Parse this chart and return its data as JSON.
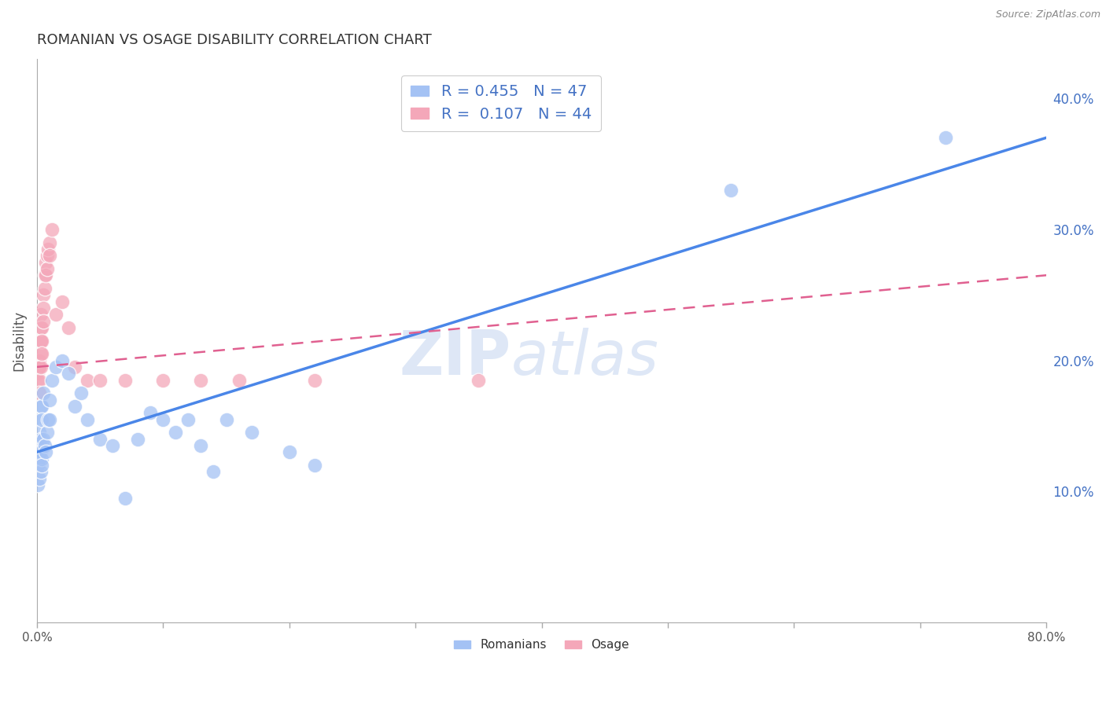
{
  "title": "ROMANIAN VS OSAGE DISABILITY CORRELATION CHART",
  "source": "Source: ZipAtlas.com",
  "ylabel": "Disability",
  "xlim": [
    0.0,
    0.8
  ],
  "ylim": [
    0.0,
    0.43
  ],
  "xticks": [
    0.0,
    0.1,
    0.2,
    0.3,
    0.4,
    0.5,
    0.6,
    0.7,
    0.8
  ],
  "xtick_labels_sparse": [
    "0.0%",
    "",
    "",
    "",
    "",
    "",
    "",
    "",
    "80.0%"
  ],
  "yticks_right": [
    0.1,
    0.2,
    0.3,
    0.4
  ],
  "ytick_labels_right": [
    "10.0%",
    "20.0%",
    "30.0%",
    "40.0%"
  ],
  "blue_color": "#a4c2f4",
  "pink_color": "#f4a7b9",
  "blue_line_color": "#4a86e8",
  "pink_line_color": "#e06090",
  "R_blue": 0.455,
  "N_blue": 47,
  "R_pink": 0.107,
  "N_pink": 44,
  "legend_label_blue": "Romanians",
  "legend_label_pink": "Osage",
  "watermark_zip": "ZIP",
  "watermark_atlas": "atlas",
  "background_color": "#ffffff",
  "grid_color": "#cccccc",
  "blue_scatter": [
    [
      0.001,
      0.155
    ],
    [
      0.001,
      0.135
    ],
    [
      0.001,
      0.12
    ],
    [
      0.001,
      0.105
    ],
    [
      0.002,
      0.13
    ],
    [
      0.002,
      0.11
    ],
    [
      0.002,
      0.145
    ],
    [
      0.002,
      0.125
    ],
    [
      0.003,
      0.165
    ],
    [
      0.003,
      0.14
    ],
    [
      0.003,
      0.13
    ],
    [
      0.003,
      0.115
    ],
    [
      0.004,
      0.125
    ],
    [
      0.004,
      0.12
    ],
    [
      0.004,
      0.165
    ],
    [
      0.004,
      0.155
    ],
    [
      0.005,
      0.175
    ],
    [
      0.005,
      0.14
    ],
    [
      0.006,
      0.135
    ],
    [
      0.007,
      0.13
    ],
    [
      0.008,
      0.145
    ],
    [
      0.009,
      0.155
    ],
    [
      0.01,
      0.17
    ],
    [
      0.01,
      0.155
    ],
    [
      0.012,
      0.185
    ],
    [
      0.015,
      0.195
    ],
    [
      0.02,
      0.2
    ],
    [
      0.025,
      0.19
    ],
    [
      0.03,
      0.165
    ],
    [
      0.035,
      0.175
    ],
    [
      0.04,
      0.155
    ],
    [
      0.05,
      0.14
    ],
    [
      0.06,
      0.135
    ],
    [
      0.07,
      0.095
    ],
    [
      0.08,
      0.14
    ],
    [
      0.09,
      0.16
    ],
    [
      0.1,
      0.155
    ],
    [
      0.11,
      0.145
    ],
    [
      0.12,
      0.155
    ],
    [
      0.13,
      0.135
    ],
    [
      0.14,
      0.115
    ],
    [
      0.15,
      0.155
    ],
    [
      0.17,
      0.145
    ],
    [
      0.2,
      0.13
    ],
    [
      0.22,
      0.12
    ],
    [
      0.55,
      0.33
    ],
    [
      0.72,
      0.37
    ]
  ],
  "pink_scatter": [
    [
      0.001,
      0.195
    ],
    [
      0.001,
      0.195
    ],
    [
      0.001,
      0.19
    ],
    [
      0.001,
      0.185
    ],
    [
      0.002,
      0.2
    ],
    [
      0.002,
      0.195
    ],
    [
      0.002,
      0.2
    ],
    [
      0.002,
      0.195
    ],
    [
      0.002,
      0.185
    ],
    [
      0.002,
      0.175
    ],
    [
      0.003,
      0.215
    ],
    [
      0.003,
      0.205
    ],
    [
      0.003,
      0.195
    ],
    [
      0.003,
      0.215
    ],
    [
      0.003,
      0.225
    ],
    [
      0.003,
      0.235
    ],
    [
      0.004,
      0.225
    ],
    [
      0.004,
      0.215
    ],
    [
      0.004,
      0.205
    ],
    [
      0.005,
      0.25
    ],
    [
      0.005,
      0.24
    ],
    [
      0.005,
      0.23
    ],
    [
      0.006,
      0.265
    ],
    [
      0.006,
      0.255
    ],
    [
      0.007,
      0.275
    ],
    [
      0.007,
      0.265
    ],
    [
      0.008,
      0.28
    ],
    [
      0.008,
      0.27
    ],
    [
      0.009,
      0.285
    ],
    [
      0.01,
      0.29
    ],
    [
      0.01,
      0.28
    ],
    [
      0.012,
      0.3
    ],
    [
      0.015,
      0.235
    ],
    [
      0.02,
      0.245
    ],
    [
      0.025,
      0.225
    ],
    [
      0.03,
      0.195
    ],
    [
      0.04,
      0.185
    ],
    [
      0.05,
      0.185
    ],
    [
      0.07,
      0.185
    ],
    [
      0.1,
      0.185
    ],
    [
      0.13,
      0.185
    ],
    [
      0.16,
      0.185
    ],
    [
      0.22,
      0.185
    ],
    [
      0.35,
      0.185
    ]
  ],
  "blue_trend_x": [
    0.0,
    0.8
  ],
  "blue_trend_y": [
    0.13,
    0.37
  ],
  "pink_trend_x": [
    0.0,
    0.8
  ],
  "pink_trend_y": [
    0.195,
    0.265
  ]
}
